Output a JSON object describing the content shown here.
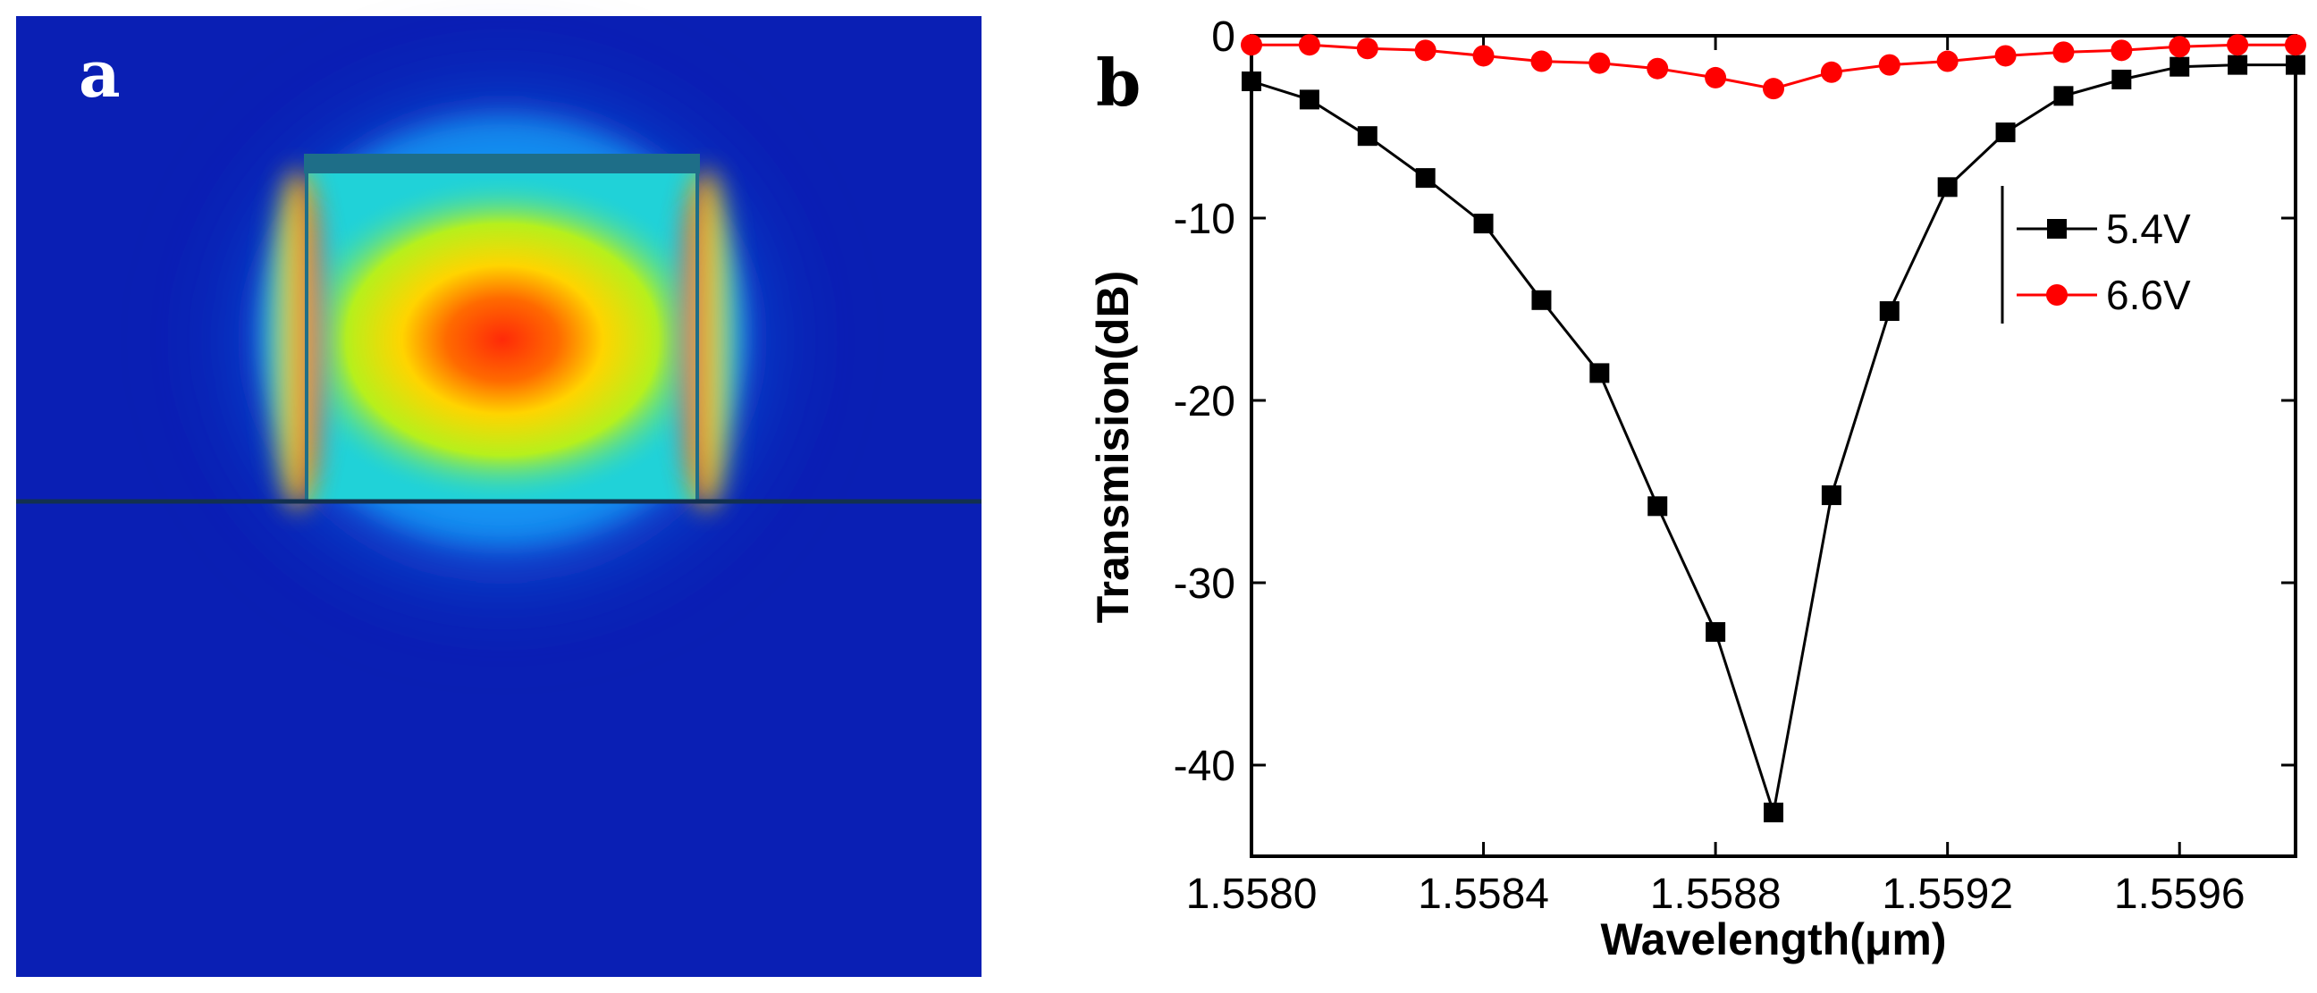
{
  "panel_a": {
    "label": "a",
    "colors": {
      "background": "#0a1fb4",
      "glow": "#19b4ff",
      "core": "#20d2d8",
      "mode_outer": "#b6f01c",
      "mode_mid": "#ffd400",
      "mode_hot": "#ff2a08",
      "edge": "#1e6e88"
    }
  },
  "panel_b": {
    "label": "b"
  },
  "chart_data": {
    "type": "line",
    "xlabel": "Wavelength(μm)",
    "ylabel": "Transmision(dB)",
    "xlim": [
      1.558,
      1.5598
    ],
    "ylim": [
      -45,
      0
    ],
    "xticks": [
      1.558,
      1.5584,
      1.5588,
      1.5592,
      1.5596
    ],
    "xtick_labels": [
      "1.5580",
      "1.5584",
      "1.5588",
      "1.5592",
      "1.5596"
    ],
    "yticks": [
      0,
      -10,
      -20,
      -30,
      -40
    ],
    "ytick_labels": [
      "0",
      "-10",
      "-20",
      "-30",
      "-40"
    ],
    "grid": false,
    "legend_position": "right",
    "series": [
      {
        "name": "5.4V",
        "color": "#000000",
        "marker": "square",
        "x": [
          1.558,
          1.5581,
          1.5582,
          1.5583,
          1.5584,
          1.5585,
          1.5586,
          1.5587,
          1.5588,
          1.5589,
          1.559,
          1.5591,
          1.5592,
          1.5593,
          1.5594,
          1.5595,
          1.5596,
          1.5597,
          1.5598
        ],
        "values": [
          -2.5,
          -3.5,
          -5.5,
          -7.8,
          -10.3,
          -14.5,
          -18.5,
          -25.8,
          -32.7,
          -42.6,
          -25.2,
          -15.1,
          -8.3,
          -5.3,
          -3.3,
          -2.4,
          -1.7,
          -1.6,
          -1.6
        ]
      },
      {
        "name": "6.6V",
        "color": "#ff0000",
        "marker": "circle",
        "x": [
          1.558,
          1.5581,
          1.5582,
          1.5583,
          1.5584,
          1.5585,
          1.5586,
          1.5587,
          1.5588,
          1.5589,
          1.559,
          1.5591,
          1.5592,
          1.5593,
          1.5594,
          1.5595,
          1.5596,
          1.5597,
          1.5598
        ],
        "values": [
          -0.5,
          -0.5,
          -0.7,
          -0.8,
          -1.1,
          -1.4,
          -1.5,
          -1.8,
          -2.3,
          -2.9,
          -2.0,
          -1.6,
          -1.4,
          -1.1,
          -0.9,
          -0.8,
          -0.6,
          -0.5,
          -0.5
        ]
      }
    ]
  }
}
